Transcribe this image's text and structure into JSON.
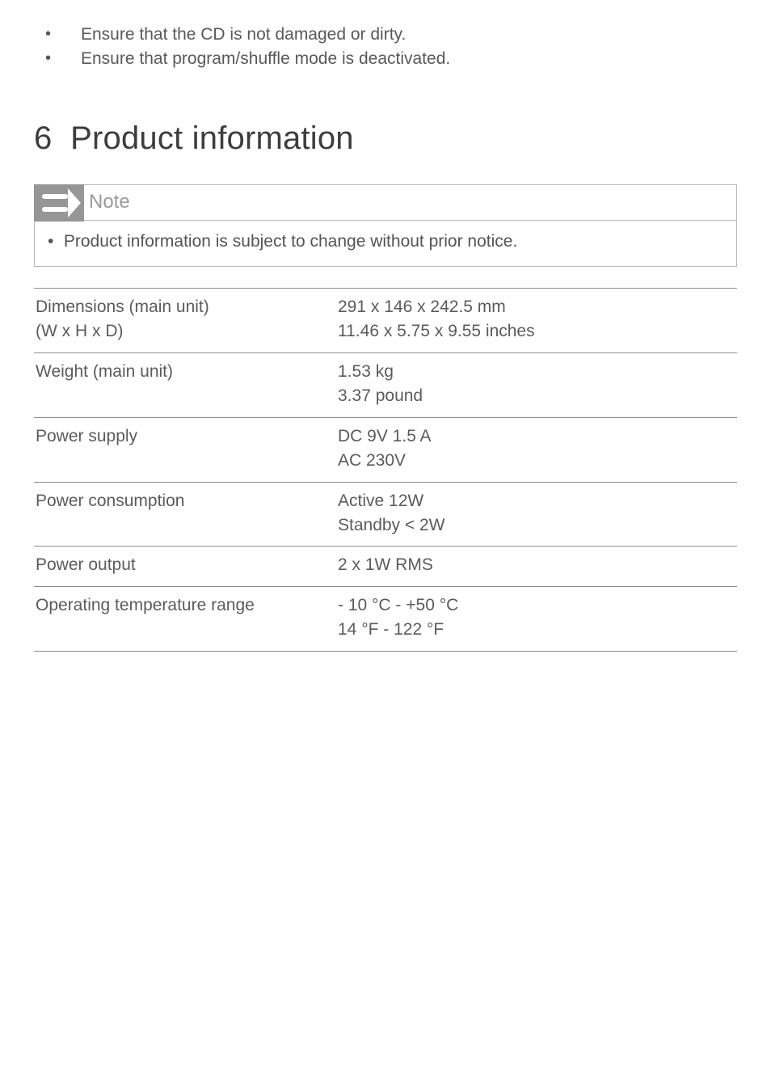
{
  "top_bullets": [
    "Ensure that the CD is not damaged or dirty.",
    "Ensure that program/shuffle mode is deactivated."
  ],
  "section": {
    "number": "6",
    "title": "Product information"
  },
  "note": {
    "label": "Note",
    "body": "Product information is subject to change without prior notice."
  },
  "spec_rows": [
    {
      "label_line1": "Dimensions (main unit)",
      "label_line2": "(W x H x D)",
      "value_line1": "291 x 146 x 242.5 mm",
      "value_line2": "11.46 x 5.75 x 9.55 inches"
    },
    {
      "label_line1": "Weight (main unit)",
      "label_line2": "",
      "value_line1": "1.53 kg",
      "value_line2": "3.37 pound"
    },
    {
      "label_line1": "Power supply",
      "label_line2": "",
      "value_line1": "DC 9V 1.5 A",
      "value_line2": "AC 230V"
    },
    {
      "label_line1": "Power consumption",
      "label_line2": "",
      "value_line1": "Active 12W",
      "value_line2": "Standby < 2W"
    },
    {
      "label_line1": "Power output",
      "label_line2": "",
      "value_line1": "2 x 1W RMS",
      "value_line2": ""
    },
    {
      "label_line1": "Operating temperature range",
      "label_line2": "",
      "value_line1": "- 10 °C - +50 °C",
      "value_line2": "14 °F - 122 °F"
    }
  ],
  "colors": {
    "text_primary": "#5a5a5a",
    "heading": "#3d3d3d",
    "note_label": "#9a9a9a",
    "border": "#b8b8b8",
    "table_border": "#8f8f8f",
    "icon_bg": "#969696",
    "icon_fg": "#ffffff"
  }
}
